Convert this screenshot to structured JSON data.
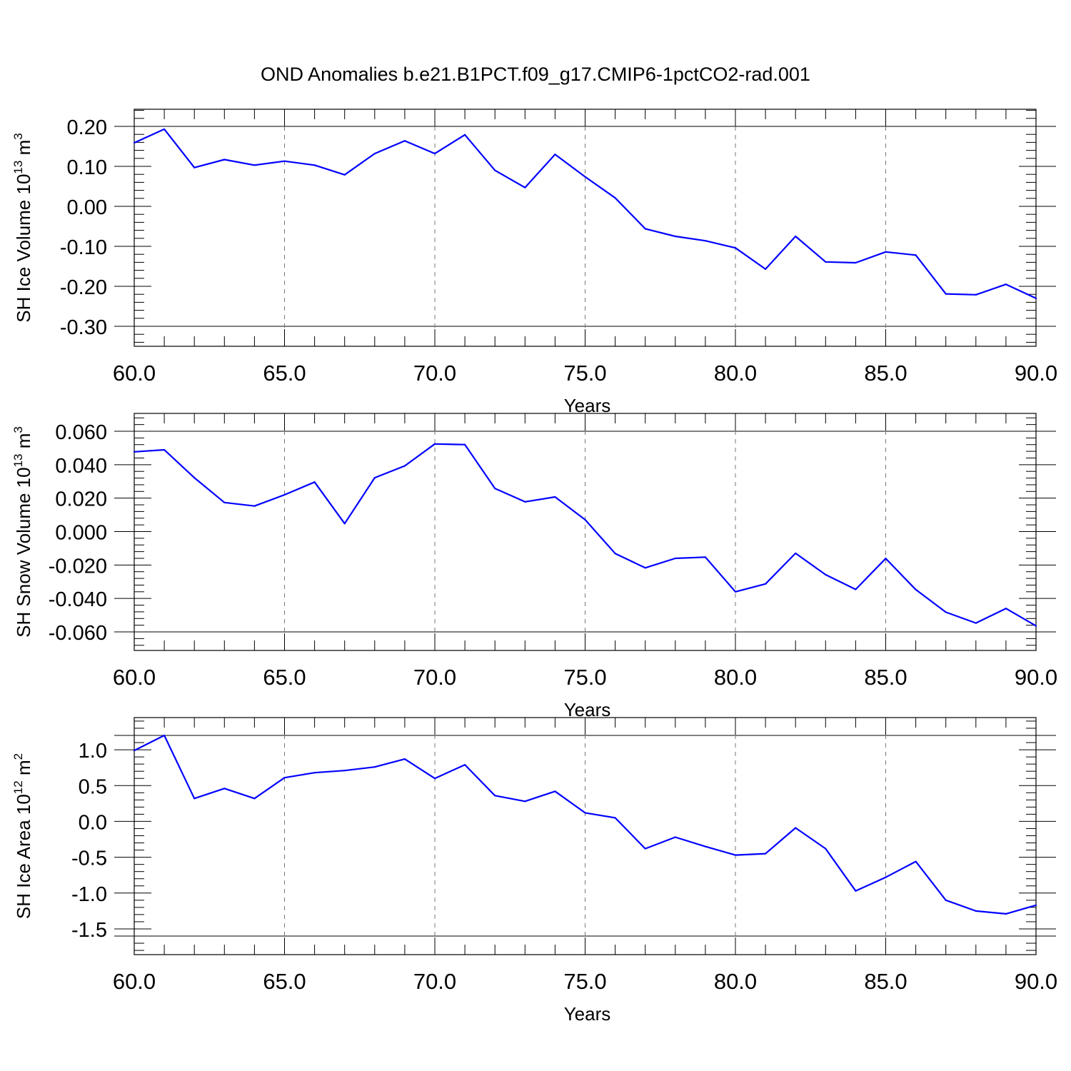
{
  "title": "OND Anomalies b.e21.B1PCT.f09_g17.CMIP6-1pctCO2-rad.001",
  "colors": {
    "line": "#0000ff",
    "grid": "#777777",
    "axes": "#000000"
  },
  "chart_data": [
    {
      "type": "line",
      "ylabel": {
        "main": "SH Ice Volume 10",
        "sup": "13",
        "unit": " m",
        "unit_sup": "3"
      },
      "xlabel": "Years",
      "xlim": [
        60,
        90
      ],
      "ylim": [
        -0.3,
        0.2
      ],
      "x_ticks": [
        "60.0",
        "65.0",
        "70.0",
        "75.0",
        "80.0",
        "85.0",
        "90.0"
      ],
      "y_ticks": [
        {
          "value": 0.2,
          "label": "0.20"
        },
        {
          "value": 0.1,
          "label": "0.10"
        },
        {
          "value": 0.0,
          "label": "0.00"
        },
        {
          "value": -0.1,
          "label": "-0.10"
        },
        {
          "value": -0.2,
          "label": "-0.20"
        },
        {
          "value": -0.3,
          "label": "-0.30"
        }
      ],
      "grid": "dashed vertical at major x ticks",
      "x": [
        60,
        61,
        62,
        63,
        64,
        65,
        66,
        67,
        68,
        69,
        70,
        71,
        72,
        73,
        74,
        75,
        76,
        77,
        78,
        79,
        80,
        81,
        82,
        83,
        84,
        85,
        86,
        87,
        88,
        89,
        90
      ],
      "values": [
        0.159,
        0.193,
        0.097,
        0.117,
        0.103,
        0.113,
        0.103,
        0.079,
        0.132,
        0.164,
        0.132,
        0.179,
        0.09,
        0.047,
        0.13,
        0.074,
        0.021,
        -0.056,
        -0.075,
        -0.086,
        -0.104,
        -0.157,
        -0.075,
        -0.139,
        -0.141,
        -0.114,
        -0.122,
        -0.219,
        -0.221,
        -0.195,
        -0.23
      ]
    },
    {
      "type": "line",
      "ylabel": {
        "main": "SH Snow Volume 10",
        "sup": "13",
        "unit": " m",
        "unit_sup": "3"
      },
      "xlabel": "Years",
      "xlim": [
        60,
        90
      ],
      "ylim": [
        -0.06,
        0.06
      ],
      "x_ticks": [
        "60.0",
        "65.0",
        "70.0",
        "75.0",
        "80.0",
        "85.0",
        "90.0"
      ],
      "y_ticks": [
        {
          "value": 0.06,
          "label": "0.060"
        },
        {
          "value": 0.04,
          "label": "0.040"
        },
        {
          "value": 0.02,
          "label": "0.020"
        },
        {
          "value": 0.0,
          "label": "0.000"
        },
        {
          "value": -0.02,
          "label": "-0.020"
        },
        {
          "value": -0.04,
          "label": "-0.040"
        },
        {
          "value": -0.06,
          "label": "-0.060"
        }
      ],
      "grid": "dashed vertical at major x ticks",
      "x": [
        60,
        61,
        62,
        63,
        64,
        65,
        66,
        67,
        68,
        69,
        70,
        71,
        72,
        73,
        74,
        75,
        76,
        77,
        78,
        79,
        80,
        81,
        82,
        83,
        84,
        85,
        86,
        87,
        88,
        89,
        90
      ],
      "values": [
        0.0477,
        0.0489,
        0.0322,
        0.0174,
        0.0153,
        0.022,
        0.0296,
        0.0048,
        0.0322,
        0.0393,
        0.0524,
        0.052,
        0.0258,
        0.0178,
        0.0207,
        0.0071,
        -0.0131,
        -0.0217,
        -0.016,
        -0.0153,
        -0.036,
        -0.0313,
        -0.013,
        -0.0258,
        -0.0346,
        -0.0161,
        -0.0347,
        -0.0482,
        -0.0547,
        -0.046,
        -0.0564
      ]
    },
    {
      "type": "line",
      "ylabel": {
        "main": "SH Ice Area 10",
        "sup": "12",
        "unit": " m",
        "unit_sup": "2"
      },
      "xlabel": "Years",
      "xlim": [
        60,
        90
      ],
      "ylim": [
        -1.6,
        1.2
      ],
      "x_ticks": [
        "60.0",
        "65.0",
        "70.0",
        "75.0",
        "80.0",
        "85.0",
        "90.0"
      ],
      "y_ticks": [
        {
          "value": 1.0,
          "label": "1.0"
        },
        {
          "value": 0.5,
          "label": "0.5"
        },
        {
          "value": 0.0,
          "label": "0.0"
        },
        {
          "value": -0.5,
          "label": "-0.5"
        },
        {
          "value": -1.0,
          "label": "-1.0"
        },
        {
          "value": -1.5,
          "label": "-1.5"
        }
      ],
      "grid": "dashed vertical at major x ticks",
      "x": [
        60,
        61,
        62,
        63,
        64,
        65,
        66,
        67,
        68,
        69,
        70,
        71,
        72,
        73,
        74,
        75,
        76,
        77,
        78,
        79,
        80,
        81,
        82,
        83,
        84,
        85,
        86,
        87,
        88,
        89,
        90
      ],
      "values": [
        0.99,
        1.2,
        0.32,
        0.46,
        0.32,
        0.61,
        0.68,
        0.71,
        0.76,
        0.87,
        0.6,
        0.79,
        0.36,
        0.28,
        0.42,
        0.12,
        0.05,
        -0.38,
        -0.22,
        -0.35,
        -0.47,
        -0.45,
        -0.09,
        -0.38,
        -0.97,
        -0.78,
        -0.56,
        -1.1,
        -1.25,
        -1.29,
        -1.17
      ]
    }
  ]
}
